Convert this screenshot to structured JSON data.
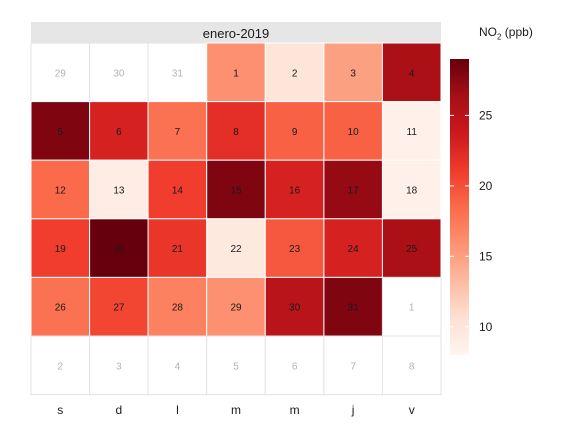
{
  "chart_data": {
    "type": "heatmap",
    "title": "enero-2019",
    "legend_title": {
      "main": "NO",
      "sub": "2",
      "unit": "(ppb)"
    },
    "legend_ticks": [
      10,
      15,
      20,
      25
    ],
    "legend_range": [
      8,
      29
    ],
    "color_scale": [
      "#fff5f0",
      "#fee0d2",
      "#fcbba1",
      "#fc9272",
      "#fb6a4a",
      "#ef3b2c",
      "#cb181d",
      "#a50f15",
      "#67000d"
    ],
    "weekday_labels": [
      "s",
      "d",
      "l",
      "m",
      "m",
      "j",
      "v"
    ],
    "weeks": [
      [
        {
          "label": "29",
          "value": null
        },
        {
          "label": "30",
          "value": null
        },
        {
          "label": "31",
          "value": null
        },
        {
          "label": "1",
          "value": 16
        },
        {
          "label": "2",
          "value": 10
        },
        {
          "label": "3",
          "value": 15
        },
        {
          "label": "4",
          "value": 26
        }
      ],
      [
        {
          "label": "5",
          "value": 28
        },
        {
          "label": "6",
          "value": 23
        },
        {
          "label": "7",
          "value": 18
        },
        {
          "label": "8",
          "value": 22
        },
        {
          "label": "9",
          "value": 19
        },
        {
          "label": "10",
          "value": 19
        },
        {
          "label": "11",
          "value": 8.5
        }
      ],
      [
        {
          "label": "12",
          "value": 18.5
        },
        {
          "label": "13",
          "value": 9
        },
        {
          "label": "14",
          "value": 21
        },
        {
          "label": "15",
          "value": 28
        },
        {
          "label": "16",
          "value": 23
        },
        {
          "label": "17",
          "value": 27
        },
        {
          "label": "18",
          "value": 8.5
        }
      ],
      [
        {
          "label": "19",
          "value": 21
        },
        {
          "label": "20",
          "value": 29
        },
        {
          "label": "21",
          "value": 21.5
        },
        {
          "label": "22",
          "value": 9.5
        },
        {
          "label": "23",
          "value": 19.5
        },
        {
          "label": "24",
          "value": 23
        },
        {
          "label": "25",
          "value": 26
        }
      ],
      [
        {
          "label": "26",
          "value": 18
        },
        {
          "label": "27",
          "value": 20.5
        },
        {
          "label": "28",
          "value": 17
        },
        {
          "label": "29",
          "value": 16
        },
        {
          "label": "30",
          "value": 25
        },
        {
          "label": "31",
          "value": 28
        },
        {
          "label": "1",
          "value": null
        }
      ],
      [
        {
          "label": "2",
          "value": null
        },
        {
          "label": "3",
          "value": null
        },
        {
          "label": "4",
          "value": null
        },
        {
          "label": "5",
          "value": null
        },
        {
          "label": "6",
          "value": null
        },
        {
          "label": "7",
          "value": null
        },
        {
          "label": "8",
          "value": null
        }
      ]
    ]
  }
}
